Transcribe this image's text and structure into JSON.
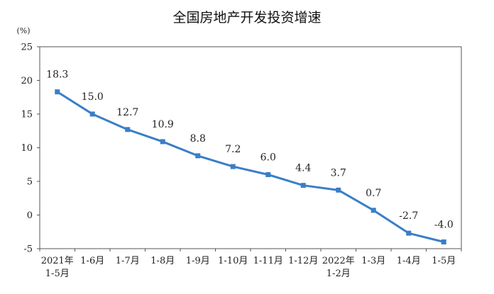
{
  "title": "全国房地产开发投资增速",
  "chart_data": {
    "type": "line",
    "title": "全国房地产开发投资增速",
    "ylabel": "(%)",
    "xlabel": "",
    "ylim": [
      -5,
      25
    ],
    "yticks": [
      "-5",
      "0",
      "5",
      "10",
      "15",
      "20",
      "25"
    ],
    "grid": false,
    "legend": "none",
    "line_color": "#3a7ec8",
    "categories": [
      [
        "2021年",
        "1-5月"
      ],
      [
        "1-6月"
      ],
      [
        "1-7月"
      ],
      [
        "1-8月"
      ],
      [
        "1-9月"
      ],
      [
        "1-10月"
      ],
      [
        "1-11月"
      ],
      [
        "1-12月"
      ],
      [
        "2022年",
        "1-2月"
      ],
      [
        "1-3月"
      ],
      [
        "1-4月"
      ],
      [
        "1-5月"
      ]
    ],
    "values": [
      18.3,
      15.0,
      12.7,
      10.9,
      8.8,
      7.2,
      6.0,
      4.4,
      3.7,
      0.7,
      -2.7,
      -4.0
    ],
    "data_labels": [
      "18.3",
      "15.0",
      "12.7",
      "10.9",
      "8.8",
      "7.2",
      "6.0",
      "4.4",
      "3.7",
      "0.7",
      "-2.7",
      "-4.0"
    ]
  }
}
